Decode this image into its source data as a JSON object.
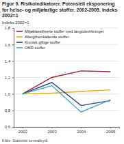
{
  "chart_data": {
    "type": "line",
    "title": "Figur 9. Risikoindikatorer. Potensiell eksponering for helse- og miljøfarlige stoffer. 2002-2005. Indeks 2002=1",
    "y_label": "Indeks 2002=1",
    "source": "Kilde: Statistisk sentralbyrå.",
    "categories": [
      "2002",
      "2003",
      "2004",
      "2005"
    ],
    "series": [
      {
        "name": "Miljøklassifiserte stoffer med langtidsvirkninger",
        "color": "#a6192e",
        "values": [
          1,
          1.2,
          1.28,
          1.27
        ]
      },
      {
        "name": "Allergifremkallende stoffer",
        "color": "#f2a900",
        "values": [
          1,
          1.01,
          1.03,
          1.05
        ]
      },
      {
        "name": "Kronisk giftige stoffer",
        "color": "#1f3f8f",
        "values": [
          1,
          1.14,
          0.86,
          0.92
        ]
      },
      {
        "name": "CMR-stoffer",
        "color": "#3fa9d5",
        "values": [
          1,
          1.1,
          0.78,
          0.93
        ]
      }
    ],
    "ylim": [
      0.6,
      1.8
    ],
    "yticks": [
      {
        "value": 0.6,
        "label": "0,6"
      },
      {
        "value": 0.8,
        "label": "0,8"
      },
      {
        "value": 1,
        "label": "1,0"
      },
      {
        "value": 1.2,
        "label": "1,2"
      },
      {
        "value": 1.4,
        "label": "1,4"
      },
      {
        "value": 1.6,
        "label": "1,6"
      },
      {
        "value": 1.8,
        "label": "1,8"
      }
    ],
    "grid": true,
    "legend": "top-left"
  }
}
